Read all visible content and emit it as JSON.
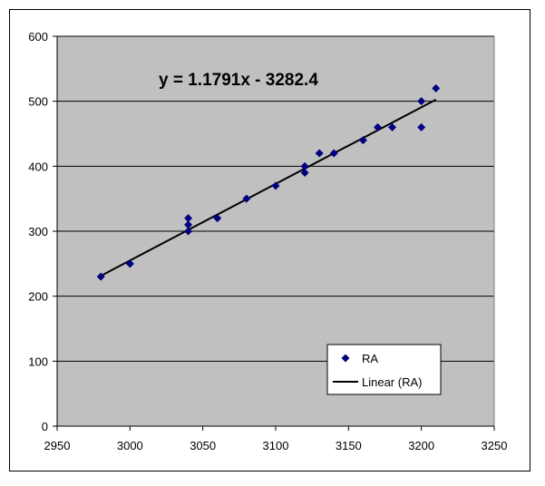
{
  "chart_data": {
    "type": "scatter",
    "title": "",
    "xlabel": "",
    "ylabel": "",
    "xlim": [
      2950,
      3250
    ],
    "ylim": [
      0,
      600
    ],
    "x_ticks": [
      2950,
      3000,
      3050,
      3100,
      3150,
      3200,
      3250
    ],
    "y_ticks": [
      0,
      100,
      200,
      300,
      400,
      500,
      600
    ],
    "x_tick_labels": [
      "2950",
      "3000",
      "3050",
      "3100",
      "3150",
      "3200",
      "3250"
    ],
    "y_tick_labels": [
      "0",
      "100",
      "200",
      "300",
      "400",
      "500",
      "600"
    ],
    "grid": "horizontal",
    "plot_background": "#c0c0c0",
    "marker_color": "#000080",
    "line_color": "#000000",
    "series": [
      {
        "name": "RA",
        "points": [
          {
            "x": 2980,
            "y": 230
          },
          {
            "x": 3000,
            "y": 250
          },
          {
            "x": 3040,
            "y": 300
          },
          {
            "x": 3040,
            "y": 310
          },
          {
            "x": 3040,
            "y": 320
          },
          {
            "x": 3060,
            "y": 320
          },
          {
            "x": 3080,
            "y": 350
          },
          {
            "x": 3100,
            "y": 370
          },
          {
            "x": 3120,
            "y": 390
          },
          {
            "x": 3120,
            "y": 400
          },
          {
            "x": 3130,
            "y": 420
          },
          {
            "x": 3140,
            "y": 420
          },
          {
            "x": 3160,
            "y": 440
          },
          {
            "x": 3170,
            "y": 460
          },
          {
            "x": 3180,
            "y": 460
          },
          {
            "x": 3200,
            "y": 460
          },
          {
            "x": 3200,
            "y": 500
          },
          {
            "x": 3210,
            "y": 520
          }
        ]
      }
    ],
    "trendline": {
      "name": "Linear (RA)",
      "slope": 1.1791,
      "intercept": -3282.4,
      "x_range": [
        2980,
        3210
      ],
      "equation": "y = 1.1791x - 3282.4"
    },
    "legend": {
      "placement": "bottom-right",
      "entries": [
        "RA",
        "Linear (RA)"
      ]
    }
  }
}
